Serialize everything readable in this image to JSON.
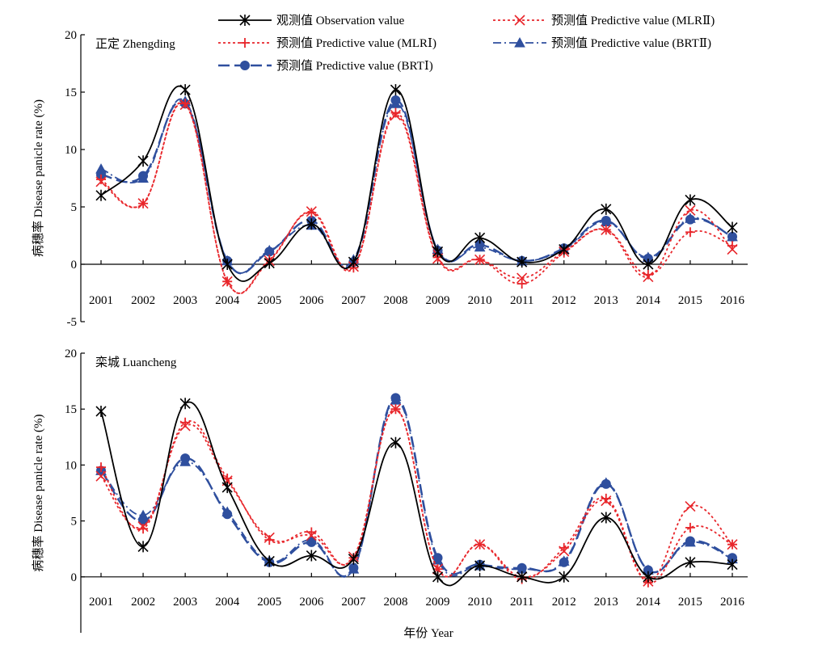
{
  "legend": [
    {
      "key": "obs",
      "label": "观测值 Observation value"
    },
    {
      "key": "mlr1",
      "label": "预测值 Predictive value (MLRⅠ)"
    },
    {
      "key": "brt1",
      "label": "预测值 Predictive value (BRTⅠ)"
    },
    {
      "key": "mlr2",
      "label": "预测值 Predictive value (MLRⅡ)"
    },
    {
      "key": "brt2",
      "label": "预测值 Predictive value (BRTⅡ)"
    }
  ],
  "styles": {
    "obs": {
      "color": "#000000",
      "dash": "",
      "marker": "asterisk"
    },
    "mlr1": {
      "color": "#e8262b",
      "dash": "3,3",
      "marker": "plus"
    },
    "mlr2": {
      "color": "#e8262b",
      "dash": "3,3",
      "marker": "cross"
    },
    "brt1": {
      "color": "#2f4f9e",
      "dash": "14,6",
      "marker": "circle"
    },
    "brt2": {
      "color": "#2f4f9e",
      "dash": "10,4,2,4",
      "marker": "triangle"
    }
  },
  "chart_data": [
    {
      "type": "line",
      "panel_label": "正定 Zhengding",
      "ylabel": "病穗率 Disease panicle rate (%)",
      "xlabel": "",
      "ylim": [
        -5,
        20
      ],
      "yticks": [
        -5,
        0,
        5,
        10,
        15,
        20
      ],
      "categories": [
        "2001",
        "2002",
        "2003",
        "2004",
        "2005",
        "2006",
        "2007",
        "2008",
        "2009",
        "2010",
        "2011",
        "2012",
        "2013",
        "2014",
        "2015",
        "2016"
      ],
      "series": [
        {
          "key": "obs",
          "name": "观测值 Observation value",
          "values": [
            6.0,
            9.0,
            15.2,
            0.0,
            0.1,
            3.5,
            0.2,
            15.2,
            1.1,
            2.3,
            0.2,
            1.3,
            4.8,
            0.0,
            5.6,
            3.2
          ]
        },
        {
          "key": "mlr1",
          "name": "预测值 Predictive value (MLRⅠ)",
          "values": [
            7.4,
            5.3,
            14.0,
            -1.5,
            0.4,
            4.5,
            -0.3,
            13.2,
            0.6,
            0.4,
            -1.7,
            1.0,
            3.0,
            -0.9,
            2.8,
            1.6
          ]
        },
        {
          "key": "mlr2",
          "name": "预测值 Predictive value (MLRⅡ)",
          "values": [
            7.2,
            5.3,
            13.9,
            -1.5,
            0.3,
            4.6,
            -0.2,
            13.0,
            0.5,
            0.4,
            -1.2,
            1.1,
            3.0,
            -1.1,
            4.7,
            1.3
          ]
        },
        {
          "key": "brt1",
          "name": "预测值 Predictive value (BRTⅠ)",
          "values": [
            7.8,
            7.7,
            14.0,
            0.3,
            1.1,
            3.8,
            0.2,
            14.3,
            1.2,
            1.7,
            0.3,
            1.4,
            3.8,
            0.5,
            3.9,
            2.4
          ]
        },
        {
          "key": "brt2",
          "name": "预测值 Predictive value (BRTⅡ)",
          "values": [
            8.3,
            7.5,
            14.2,
            0.3,
            1.2,
            3.4,
            0.4,
            14.0,
            1.3,
            1.5,
            0.3,
            1.3,
            3.7,
            0.6,
            4.0,
            2.4
          ]
        }
      ]
    },
    {
      "type": "line",
      "panel_label": "栾城 Luancheng",
      "ylabel": "病穗率 Disease panicle rate (%)",
      "xlabel": "年份 Year",
      "ylim": [
        -5,
        20
      ],
      "yticks": [
        0,
        5,
        10,
        15,
        20
      ],
      "categories": [
        "2001",
        "2002",
        "2003",
        "2004",
        "2005",
        "2006",
        "2007",
        "2008",
        "2009",
        "2010",
        "2011",
        "2012",
        "2013",
        "2014",
        "2015",
        "2016"
      ],
      "series": [
        {
          "key": "obs",
          "name": "观测值 Observation value",
          "values": [
            14.8,
            2.7,
            15.5,
            8.0,
            1.4,
            1.9,
            1.6,
            12.0,
            0.0,
            1.0,
            0.0,
            0.0,
            5.3,
            0.0,
            1.3,
            1.1
          ]
        },
        {
          "key": "mlr1",
          "name": "预测值 Predictive value (MLRⅠ)",
          "values": [
            9.8,
            4.3,
            13.8,
            8.8,
            3.3,
            4.0,
            1.7,
            15.0,
            0.7,
            2.9,
            -0.2,
            2.6,
            7.0,
            -0.5,
            4.4,
            2.9
          ]
        },
        {
          "key": "mlr2",
          "name": "预测值 Predictive value (MLRⅡ)",
          "values": [
            9.0,
            4.5,
            13.5,
            8.6,
            3.5,
            3.7,
            1.8,
            15.0,
            0.7,
            2.9,
            0.0,
            2.3,
            6.8,
            -0.4,
            6.3,
            2.9
          ]
        },
        {
          "key": "brt1",
          "name": "预测值 Predictive value (BRTⅠ)",
          "values": [
            9.5,
            5.0,
            10.6,
            5.6,
            1.3,
            3.1,
            0.8,
            16.0,
            1.7,
            1.1,
            0.8,
            1.3,
            8.3,
            0.6,
            3.2,
            1.7
          ]
        },
        {
          "key": "brt2",
          "name": "预测值 Predictive value (BRTⅡ)",
          "values": [
            9.5,
            5.5,
            10.3,
            5.8,
            1.4,
            3.3,
            0.7,
            15.8,
            1.5,
            1.0,
            0.7,
            1.4,
            8.4,
            0.6,
            3.1,
            1.6
          ]
        }
      ]
    }
  ]
}
